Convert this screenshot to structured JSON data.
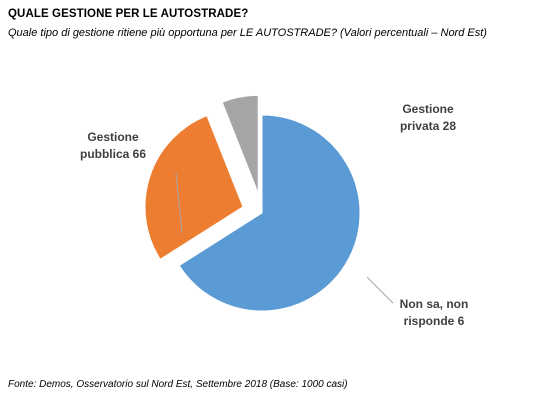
{
  "header": {
    "title": "QUALE GESTIONE PER LE AUTOSTRADE?",
    "subtitle": "Quale tipo di gestione ritiene più opportuna per LE AUTOSTRADE? (Valori percentuali – Nord Est)"
  },
  "chart_data": {
    "type": "pie",
    "title": "QUALE GESTIONE PER LE AUTOSTRADE?",
    "subtitle": "Quale tipo di gestione ritiene più opportuna per LE AUTOSTRADE? (Valori percentuali – Nord Est)",
    "slices": [
      {
        "name": "Gestione pubblica",
        "value": 66,
        "label_lines": [
          "Gestione",
          "pubblica 66"
        ],
        "color": "#5B9BD5",
        "exploded": false
      },
      {
        "name": "Gestione privata",
        "value": 28,
        "label_lines": [
          "Gestione",
          "privata 28"
        ],
        "color": "#ED7D31",
        "exploded": true
      },
      {
        "name": "Non sa, non risponde",
        "value": 6,
        "label_lines": [
          "Non sa, non",
          "risponde 6"
        ],
        "color": "#A5A5A5",
        "exploded": true
      }
    ],
    "start_angle_deg": 0,
    "direction": "clockwise",
    "legend": "none"
  },
  "footer": {
    "source": "Fonte: Demos, Osservatorio sul Nord Est, Settembre  2018 (Base: 1000 casi)"
  }
}
